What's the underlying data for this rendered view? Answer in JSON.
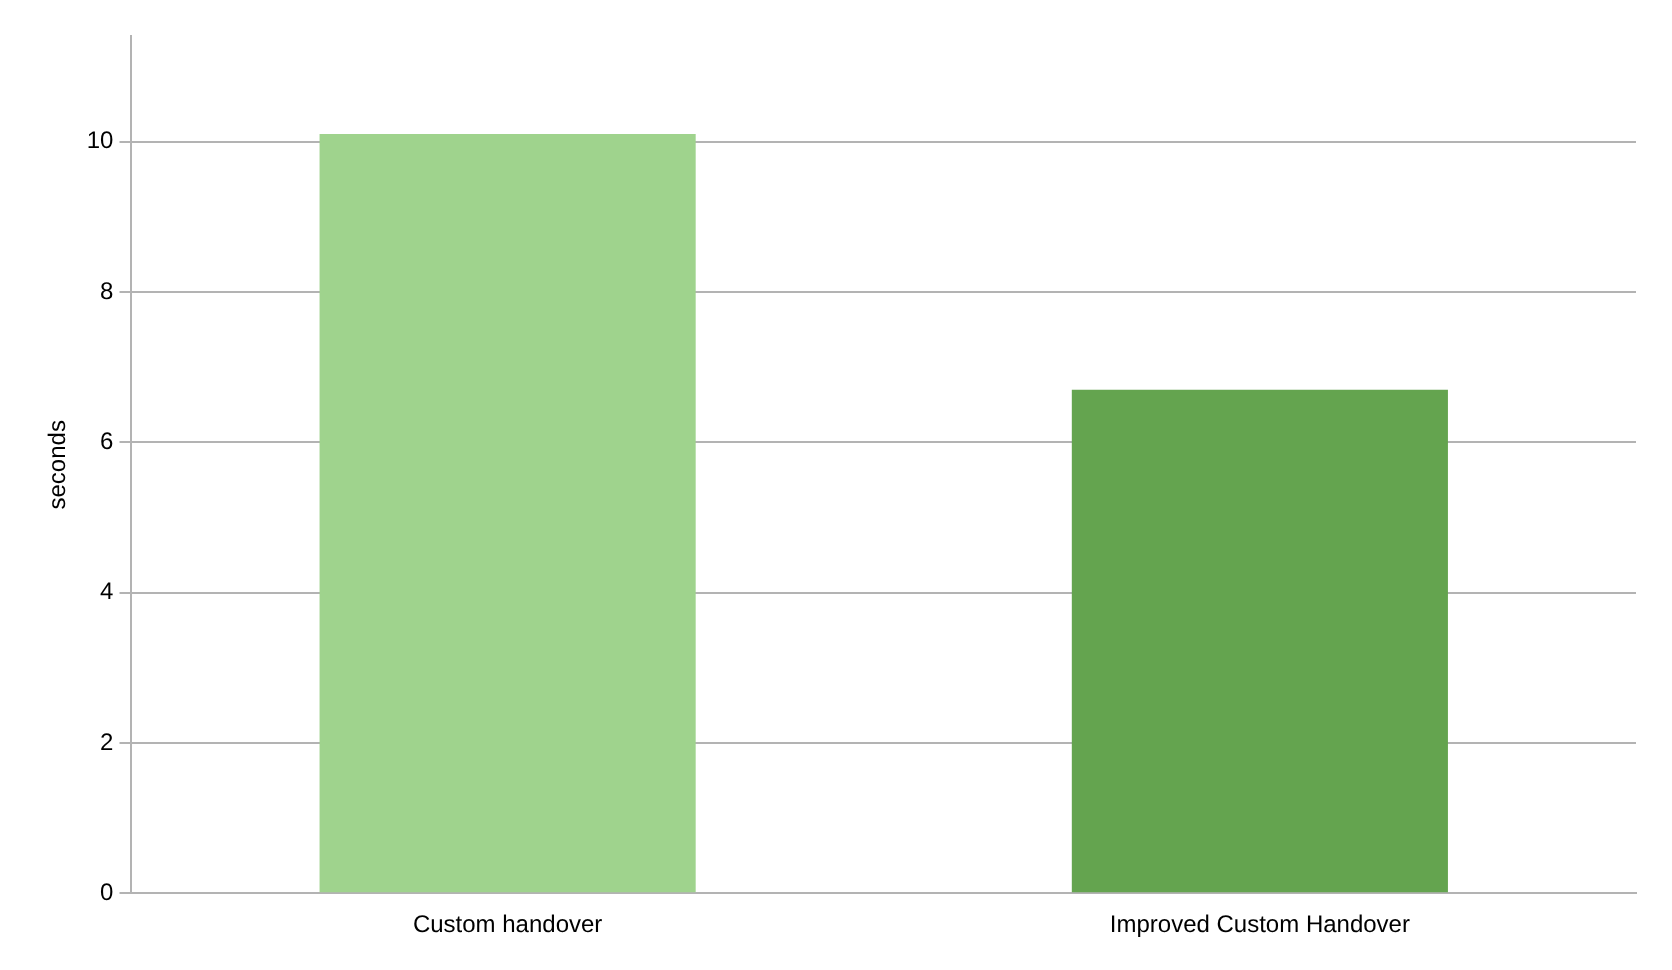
{
  "chart_data": {
    "type": "bar",
    "ylabel": "seconds",
    "categories": [
      "Custom handover",
      "Improved Custom Handover"
    ],
    "values": [
      10.1,
      6.7
    ],
    "colors": [
      "#9fd38d",
      "#64a44f"
    ],
    "ylim": [
      0,
      11.4
    ],
    "yticks": [
      0,
      2,
      4,
      6,
      8,
      10
    ],
    "grid": "y",
    "legend": false
  }
}
